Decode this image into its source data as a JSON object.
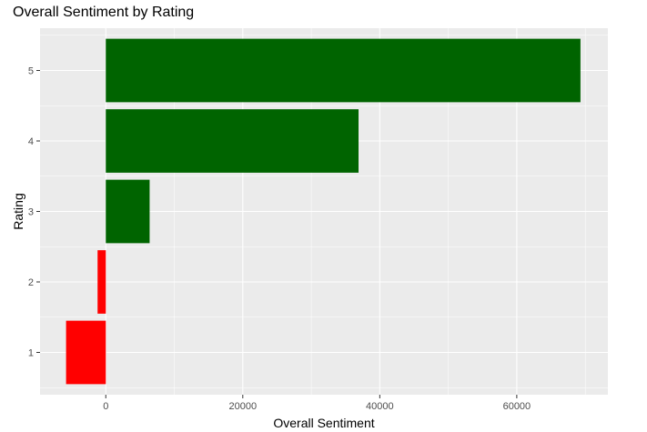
{
  "chart_data": {
    "type": "bar",
    "orientation": "horizontal",
    "title": "Overall Sentiment by Rating",
    "xlabel": "Overall Sentiment",
    "ylabel": "Rating",
    "categories": [
      "1",
      "2",
      "3",
      "4",
      "5"
    ],
    "values": [
      -5800,
      -1200,
      6400,
      36900,
      69300
    ],
    "xlim": [
      -9600,
      73300
    ],
    "xticks": [
      0,
      20000,
      40000,
      60000
    ],
    "xtick_labels": [
      "0",
      "20000",
      "40000",
      "60000"
    ],
    "grid": true,
    "legend": "none",
    "colors": {
      "positive": "#006400",
      "negative": "#ff0000",
      "panel_background": "#ebebeb",
      "grid_major": "#ffffff",
      "tick_text": "#4d4d4d"
    }
  }
}
